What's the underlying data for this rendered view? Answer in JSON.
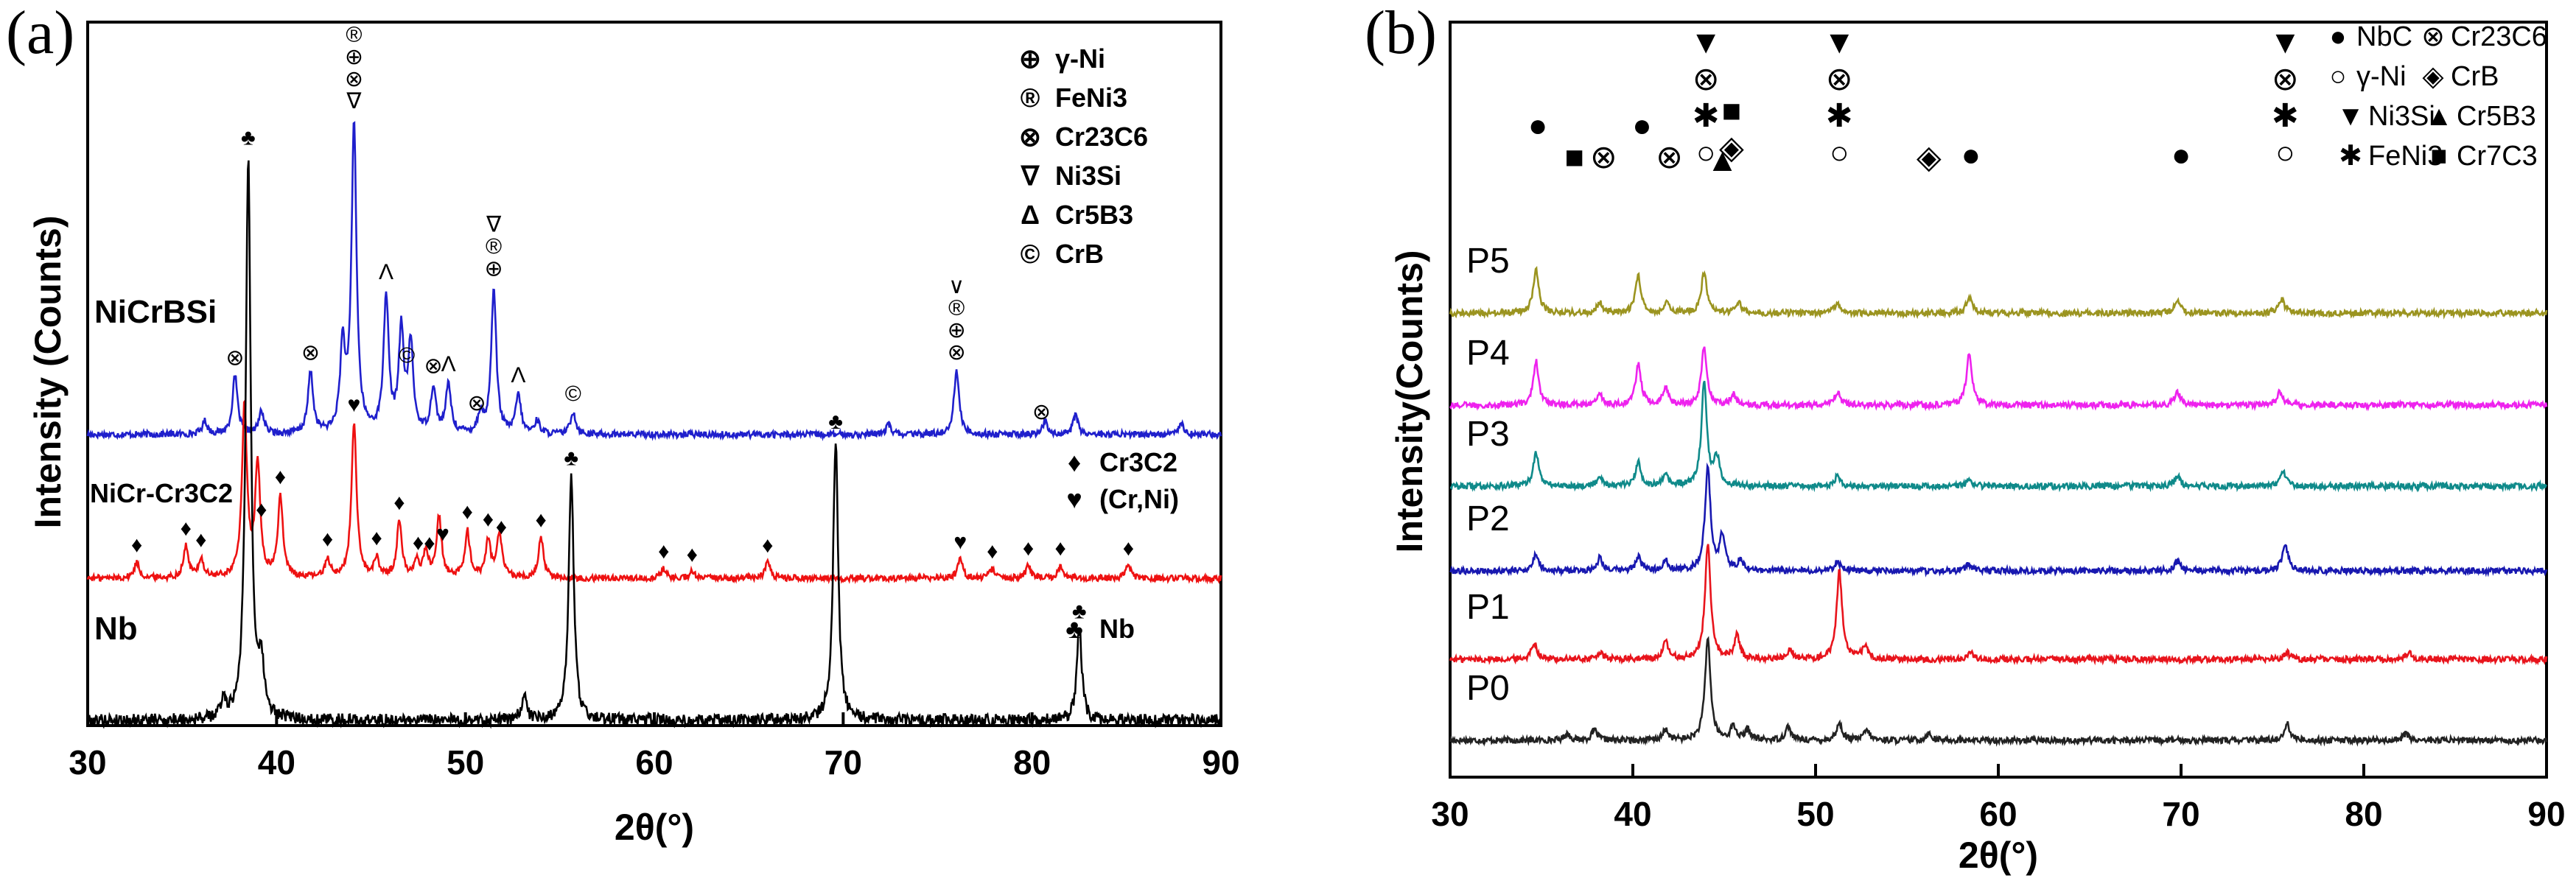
{
  "figure": {
    "panels": [
      {
        "id": "a",
        "letter": "(a)",
        "xlabel": "2θ(°)",
        "ylabel": "Intensity (Counts)",
        "xlim": [
          30,
          90
        ],
        "xticks": [
          30,
          40,
          50,
          60,
          70,
          80,
          90
        ],
        "colors": {
          "NiCrBSi": "#1f1fcc",
          "NiCr-Cr3C2": "#ee1111",
          "Nb": "#000000"
        },
        "legend_items": [
          {
            "symbol": "⊕",
            "label": "γ-Ni"
          },
          {
            "symbol": "®",
            "label": "FeNi3"
          },
          {
            "symbol": "⊗",
            "label": "Cr23C6"
          },
          {
            "symbol": "∇",
            "label": "Ni3Si"
          },
          {
            "symbol": "Δ",
            "label": "Cr5B3"
          },
          {
            "symbol": "©",
            "label": "CrB"
          }
        ],
        "legend_items_2": [
          {
            "symbol": "♦",
            "label": "Cr3C2"
          },
          {
            "symbol": "♥",
            "label": "(Cr,Ni)"
          }
        ],
        "legend_items_3": [
          {
            "symbol": "♣",
            "label": "Nb"
          }
        ]
      },
      {
        "id": "b",
        "letter": "(b)",
        "xlabel": "2θ(°)",
        "ylabel": "Intensity(Counts)",
        "xlim": [
          30,
          90
        ],
        "xticks": [
          30,
          40,
          50,
          60,
          70,
          80,
          90
        ],
        "legend_items": [
          {
            "symbol": "●",
            "label": "NbC"
          },
          {
            "symbol": "⊗",
            "label": "Cr23C6"
          },
          {
            "symbol": "○",
            "label": "γ-Ni"
          },
          {
            "symbol": "◈",
            "label": "CrB"
          },
          {
            "symbol": "▼",
            "label": "Ni3Si"
          },
          {
            "symbol": "▲",
            "label": "Cr5B3"
          },
          {
            "symbol": "✱",
            "label": "FeNi3"
          },
          {
            "symbol": "■",
            "label": "Cr7C3"
          }
        ]
      }
    ]
  },
  "chart_data": [
    {
      "type": "line",
      "title": "(a)",
      "xlabel": "2θ(°)",
      "ylabel": "Intensity (Counts)",
      "xlim": [
        30,
        90
      ],
      "series": [
        {
          "name": "NiCrBSi",
          "peaks": [
            {
              "x": 36.2,
              "h": 0.04
            },
            {
              "x": 37.8,
              "h": 0.18
            },
            {
              "x": 39.2,
              "h": 0.07
            },
            {
              "x": 41.8,
              "h": 0.19
            },
            {
              "x": 43.5,
              "h": 0.26
            },
            {
              "x": 44.1,
              "h": 0.95
            },
            {
              "x": 45.8,
              "h": 0.42
            },
            {
              "x": 46.6,
              "h": 0.31
            },
            {
              "x": 47.1,
              "h": 0.27
            },
            {
              "x": 48.3,
              "h": 0.14
            },
            {
              "x": 49.1,
              "h": 0.15
            },
            {
              "x": 50.8,
              "h": 0.06
            },
            {
              "x": 51.5,
              "h": 0.45
            },
            {
              "x": 52.8,
              "h": 0.12
            },
            {
              "x": 53.8,
              "h": 0.04
            },
            {
              "x": 55.7,
              "h": 0.07
            },
            {
              "x": 72.4,
              "h": 0.03
            },
            {
              "x": 76.0,
              "h": 0.2
            },
            {
              "x": 80.7,
              "h": 0.04
            },
            {
              "x": 82.3,
              "h": 0.06
            },
            {
              "x": 87.9,
              "h": 0.04
            }
          ],
          "markers": [
            {
              "x": 37.8,
              "symbols": [
                "⊗"
              ]
            },
            {
              "x": 41.8,
              "symbols": [
                "⊗"
              ]
            },
            {
              "x": 44.1,
              "symbols": [
                "®",
                "⊕",
                "⊗",
                "∇"
              ]
            },
            {
              "x": 45.8,
              "symbols": [
                "Λ"
              ]
            },
            {
              "x": 46.9,
              "symbols": [
                "©"
              ]
            },
            {
              "x": 48.3,
              "symbols": [
                "⊗"
              ]
            },
            {
              "x": 49.1,
              "symbols": [
                "Λ"
              ]
            },
            {
              "x": 50.6,
              "symbols": [
                "⊗"
              ]
            },
            {
              "x": 51.5,
              "symbols": [
                "∇",
                "®",
                "⊕"
              ]
            },
            {
              "x": 52.8,
              "symbols": [
                "Λ"
              ]
            },
            {
              "x": 55.7,
              "symbols": [
                "©"
              ]
            },
            {
              "x": 76.0,
              "symbols": [
                "∨",
                "®",
                "⊕",
                "⊗"
              ]
            },
            {
              "x": 80.5,
              "symbols": [
                "⊗"
              ]
            }
          ]
        },
        {
          "name": "NiCr-Cr3C2",
          "peaks": [
            {
              "x": 32.6,
              "h": 0.05
            },
            {
              "x": 35.2,
              "h": 0.1
            },
            {
              "x": 36.0,
              "h": 0.06
            },
            {
              "x": 38.3,
              "h": 0.55
            },
            {
              "x": 39.0,
              "h": 0.36
            },
            {
              "x": 40.2,
              "h": 0.26
            },
            {
              "x": 42.7,
              "h": 0.06
            },
            {
              "x": 44.1,
              "h": 0.5
            },
            {
              "x": 45.3,
              "h": 0.06
            },
            {
              "x": 46.5,
              "h": 0.18
            },
            {
              "x": 47.4,
              "h": 0.05
            },
            {
              "x": 47.9,
              "h": 0.08
            },
            {
              "x": 48.6,
              "h": 0.2
            },
            {
              "x": 50.1,
              "h": 0.15
            },
            {
              "x": 51.2,
              "h": 0.12
            },
            {
              "x": 51.8,
              "h": 0.14
            },
            {
              "x": 54.0,
              "h": 0.13
            },
            {
              "x": 60.5,
              "h": 0.03
            },
            {
              "x": 62.0,
              "h": 0.02
            },
            {
              "x": 66.0,
              "h": 0.05
            },
            {
              "x": 76.2,
              "h": 0.06
            },
            {
              "x": 77.9,
              "h": 0.03
            },
            {
              "x": 79.8,
              "h": 0.04
            },
            {
              "x": 81.5,
              "h": 0.04
            },
            {
              "x": 85.1,
              "h": 0.04
            }
          ],
          "markers": [
            {
              "x": 32.6,
              "symbols": [
                "♦"
              ]
            },
            {
              "x": 35.2,
              "symbols": [
                "♦"
              ]
            },
            {
              "x": 36.0,
              "symbols": [
                "♦"
              ]
            },
            {
              "x": 39.2,
              "symbols": [
                "♦"
              ]
            },
            {
              "x": 40.2,
              "symbols": [
                "♦"
              ]
            },
            {
              "x": 42.7,
              "symbols": [
                "♦"
              ]
            },
            {
              "x": 44.1,
              "symbols": [
                "♥"
              ]
            },
            {
              "x": 45.3,
              "symbols": [
                "♦"
              ]
            },
            {
              "x": 46.5,
              "symbols": [
                "♦"
              ]
            },
            {
              "x": 47.5,
              "symbols": [
                "♦"
              ]
            },
            {
              "x": 48.1,
              "symbols": [
                "♦"
              ]
            },
            {
              "x": 48.8,
              "symbols": [
                "♥"
              ]
            },
            {
              "x": 50.1,
              "symbols": [
                "♦"
              ]
            },
            {
              "x": 51.2,
              "symbols": [
                "♦"
              ]
            },
            {
              "x": 51.9,
              "symbols": [
                "♦"
              ]
            },
            {
              "x": 54.0,
              "symbols": [
                "♦"
              ]
            },
            {
              "x": 60.5,
              "symbols": [
                "♦"
              ]
            },
            {
              "x": 62.0,
              "symbols": [
                "♦"
              ]
            },
            {
              "x": 66.0,
              "symbols": [
                "♦"
              ]
            },
            {
              "x": 76.2,
              "symbols": [
                "♥"
              ]
            },
            {
              "x": 77.9,
              "symbols": [
                "♦"
              ]
            },
            {
              "x": 79.8,
              "symbols": [
                "♦"
              ]
            },
            {
              "x": 81.5,
              "symbols": [
                "♦"
              ]
            },
            {
              "x": 85.1,
              "symbols": [
                "♦"
              ]
            }
          ]
        },
        {
          "name": "Nb",
          "peaks": [
            {
              "x": 37.2,
              "h": 0.03
            },
            {
              "x": 38.5,
              "h": 0.92
            },
            {
              "x": 39.2,
              "h": 0.08
            },
            {
              "x": 53.1,
              "h": 0.04
            },
            {
              "x": 55.6,
              "h": 0.4
            },
            {
              "x": 69.6,
              "h": 0.46
            },
            {
              "x": 82.5,
              "h": 0.15
            }
          ],
          "markers": [
            {
              "x": 38.5,
              "symbols": [
                "♣"
              ]
            },
            {
              "x": 55.6,
              "symbols": [
                "♣"
              ]
            },
            {
              "x": 69.6,
              "symbols": [
                "♣"
              ]
            },
            {
              "x": 82.5,
              "symbols": [
                "♣"
              ]
            }
          ]
        }
      ]
    },
    {
      "type": "line",
      "title": "(b)",
      "xlabel": "2θ(°)",
      "ylabel": "Intensity(Counts)",
      "xlim": [
        30,
        90
      ],
      "series": [
        {
          "name": "P0",
          "color": "#222222",
          "peaks": [
            {
              "x": 36.4,
              "h": 0.02
            },
            {
              "x": 37.9,
              "h": 0.03
            },
            {
              "x": 41.8,
              "h": 0.03
            },
            {
              "x": 44.1,
              "h": 0.3
            },
            {
              "x": 45.5,
              "h": 0.04
            },
            {
              "x": 46.3,
              "h": 0.03
            },
            {
              "x": 48.5,
              "h": 0.04
            },
            {
              "x": 51.3,
              "h": 0.05
            },
            {
              "x": 52.8,
              "h": 0.03
            },
            {
              "x": 56.2,
              "h": 0.02
            },
            {
              "x": 75.8,
              "h": 0.05
            },
            {
              "x": 82.3,
              "h": 0.02
            }
          ]
        },
        {
          "name": "P1",
          "color": "#e8141c",
          "peaks": [
            {
              "x": 34.6,
              "h": 0.05
            },
            {
              "x": 38.2,
              "h": 0.02
            },
            {
              "x": 41.8,
              "h": 0.05
            },
            {
              "x": 44.1,
              "h": 0.34
            },
            {
              "x": 45.7,
              "h": 0.07
            },
            {
              "x": 48.6,
              "h": 0.03
            },
            {
              "x": 51.3,
              "h": 0.26
            },
            {
              "x": 52.7,
              "h": 0.04
            },
            {
              "x": 58.5,
              "h": 0.02
            },
            {
              "x": 75.8,
              "h": 0.02
            },
            {
              "x": 82.5,
              "h": 0.02
            }
          ]
        },
        {
          "name": "P2",
          "color": "#1818b0",
          "peaks": [
            {
              "x": 34.7,
              "h": 0.05
            },
            {
              "x": 38.2,
              "h": 0.04
            },
            {
              "x": 40.3,
              "h": 0.04
            },
            {
              "x": 41.8,
              "h": 0.03
            },
            {
              "x": 44.1,
              "h": 0.3
            },
            {
              "x": 44.9,
              "h": 0.1
            },
            {
              "x": 45.9,
              "h": 0.03
            },
            {
              "x": 51.2,
              "h": 0.03
            },
            {
              "x": 58.4,
              "h": 0.02
            },
            {
              "x": 69.8,
              "h": 0.03
            },
            {
              "x": 75.7,
              "h": 0.08
            }
          ]
        },
        {
          "name": "P3",
          "color": "#0f8a8a",
          "peaks": [
            {
              "x": 34.7,
              "h": 0.1
            },
            {
              "x": 38.2,
              "h": 0.03
            },
            {
              "x": 40.3,
              "h": 0.07
            },
            {
              "x": 41.8,
              "h": 0.03
            },
            {
              "x": 43.9,
              "h": 0.3
            },
            {
              "x": 44.6,
              "h": 0.08
            },
            {
              "x": 51.2,
              "h": 0.03
            },
            {
              "x": 58.4,
              "h": 0.02
            },
            {
              "x": 69.8,
              "h": 0.03
            },
            {
              "x": 75.6,
              "h": 0.04
            }
          ]
        },
        {
          "name": "P4",
          "color": "#ee22ee",
          "peaks": [
            {
              "x": 34.7,
              "h": 0.13
            },
            {
              "x": 38.2,
              "h": 0.03
            },
            {
              "x": 40.3,
              "h": 0.12
            },
            {
              "x": 41.8,
              "h": 0.05
            },
            {
              "x": 43.9,
              "h": 0.17
            },
            {
              "x": 45.5,
              "h": 0.03
            },
            {
              "x": 51.2,
              "h": 0.04
            },
            {
              "x": 58.4,
              "h": 0.15
            },
            {
              "x": 69.8,
              "h": 0.04
            },
            {
              "x": 75.4,
              "h": 0.04
            }
          ]
        },
        {
          "name": "P5",
          "color": "#9b9420",
          "peaks": [
            {
              "x": 34.7,
              "h": 0.13
            },
            {
              "x": 38.2,
              "h": 0.03
            },
            {
              "x": 40.3,
              "h": 0.11
            },
            {
              "x": 41.9,
              "h": 0.03
            },
            {
              "x": 43.9,
              "h": 0.12
            },
            {
              "x": 45.8,
              "h": 0.03
            },
            {
              "x": 51.2,
              "h": 0.03
            },
            {
              "x": 58.4,
              "h": 0.05
            },
            {
              "x": 69.8,
              "h": 0.04
            },
            {
              "x": 75.5,
              "h": 0.04
            }
          ]
        }
      ],
      "peak_annotations": [
        {
          "x": 34.8,
          "symbols": [
            "●"
          ]
        },
        {
          "x": 36.8,
          "symbols": [
            "■"
          ]
        },
        {
          "x": 38.4,
          "symbols": [
            "⊗"
          ]
        },
        {
          "x": 40.5,
          "symbols": [
            "●"
          ]
        },
        {
          "x": 42.0,
          "symbols": [
            "⊗"
          ]
        },
        {
          "x": 44.0,
          "symbols": [
            "▼",
            "⊗",
            "✱",
            "○"
          ]
        },
        {
          "x": 45.4,
          "symbols": [
            "■",
            "◈"
          ]
        },
        {
          "x": 44.9,
          "symbols": [
            "▲"
          ]
        },
        {
          "x": 51.3,
          "symbols": [
            "▼",
            "⊗",
            "✱",
            "○"
          ]
        },
        {
          "x": 56.2,
          "symbols": [
            "◈"
          ]
        },
        {
          "x": 58.5,
          "symbols": [
            "●"
          ]
        },
        {
          "x": 70.0,
          "symbols": [
            "●"
          ]
        },
        {
          "x": 75.7,
          "symbols": [
            "▼",
            "⊗",
            "✱",
            "○"
          ]
        }
      ]
    }
  ]
}
